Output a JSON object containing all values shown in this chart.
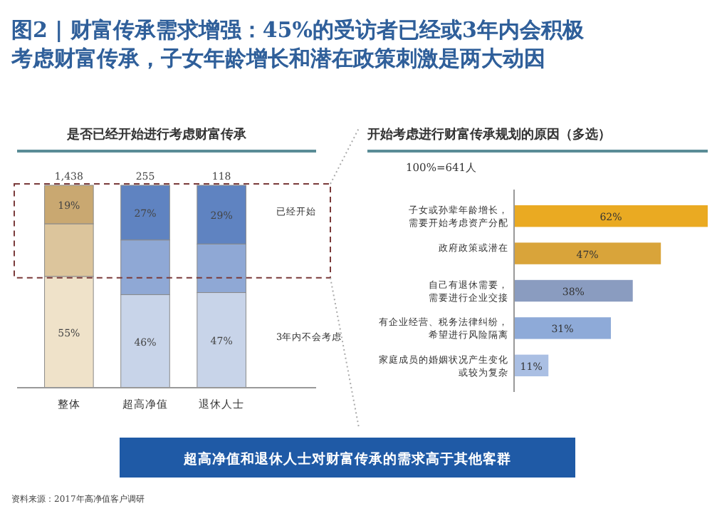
{
  "chart_data": [
    {
      "type": "bar",
      "title": "图2 | 财富传承需求增强：45%的受访者已经或3年内会积极考虑财富传承，子女年龄增长和潜在政策刺激是两大动因",
      "subtitle": "是否已经开始进行考虑财富传承",
      "categories": [
        "整体",
        "超高净值",
        "退休人士"
      ],
      "stacked": true,
      "annotations": [
        {
          "text": "1,438",
          "x": "整体",
          "y": 100
        },
        {
          "text": "255",
          "x": "超高净值",
          "y": 100
        },
        {
          "text": "118",
          "x": "退休人士",
          "y": 100
        }
      ],
      "series": [
        {
          "name": "3年内不会考虑",
          "colors": [
            "#efe2c9",
            "#c8d4e9",
            "#c8d4e9"
          ],
          "values": [
            55,
            46,
            47
          ],
          "value_labels": [
            "55%",
            "46%",
            "47%"
          ]
        },
        {
          "colors": [
            "#dcc59c",
            "#8fa8d5",
            "#8fa8d5"
          ],
          "values": [
            26,
            27,
            24
          ],
          "value_labels": [
            null,
            null,
            null
          ]
        },
        {
          "name": "已经开始",
          "colors": [
            "#c9a871",
            "#5f83c1",
            "#5f83c1"
          ],
          "values": [
            19,
            27,
            29
          ],
          "value_labels": [
            "19%",
            "27%",
            "29%"
          ]
        }
      ]
    },
    {
      "type": "bar",
      "orientation": "horizontal",
      "title": "开始考虑进行财富传承规划的原因（多选）",
      "categories": [
        "子女或孙辈年龄增长，需要开始考虑资产分配",
        "政府政策或潜在",
        "自己有退休需要，需要进行企业交接",
        "有企业经营、税务法律纠纷，希望进行风险隔离",
        "家庭成员的婚姻状况产生变化或较为复杂"
      ],
      "values": [
        62,
        47,
        38,
        31,
        11
      ],
      "value_labels": [
        "62%",
        "47%",
        "38%",
        "31%",
        "11%"
      ],
      "colors": [
        "#eaaa22",
        "#d9a43a",
        "#8a9cc0",
        "#8eaad8",
        "#aabfe3"
      ],
      "annotations": [
        "100%=641人",
        "超高净值和退休人士对财富传承的需求高于其他客群",
        "资料来源：2017年高净值客户调研"
      ]
    }
  ]
}
